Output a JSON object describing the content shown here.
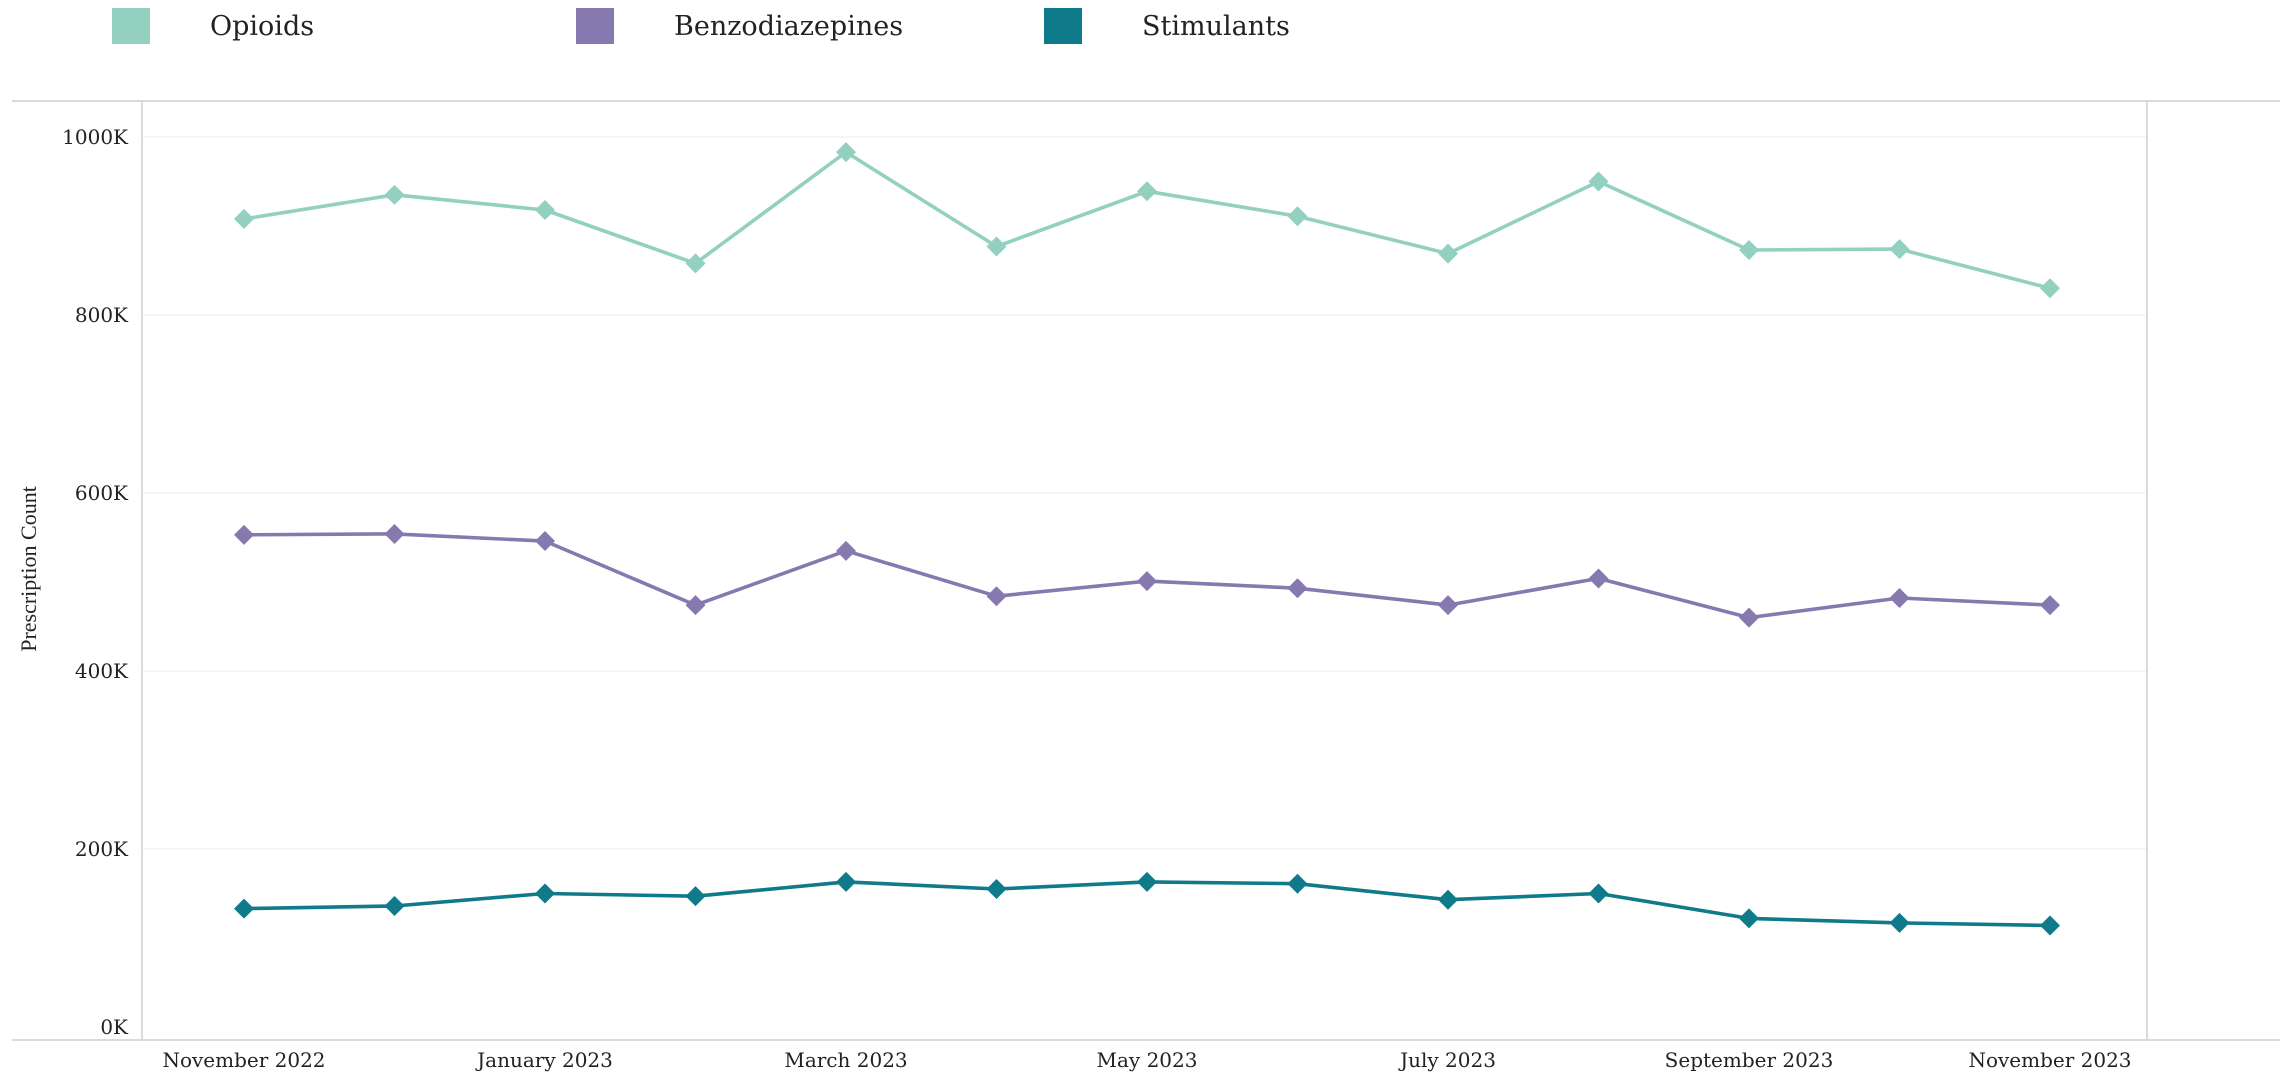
{
  "legend": {
    "items": [
      {
        "label": "Opioids",
        "color": "#93d0c0"
      },
      {
        "label": "Benzodiazepines",
        "color": "#8579b0"
      },
      {
        "label": "Stimulants",
        "color": "#0e7a8a"
      }
    ]
  },
  "chart_data": {
    "type": "line",
    "title": "",
    "xlabel": "",
    "ylabel": "Prescription Count",
    "ylim": [
      0,
      1000000
    ],
    "yticks": [
      0,
      200000,
      400000,
      600000,
      800000,
      1000000
    ],
    "ytick_labels": [
      "0K",
      "200K",
      "400K",
      "600K",
      "800K",
      "1000K"
    ],
    "x": [
      "2022-11",
      "2022-12",
      "2023-01",
      "2023-02",
      "2023-03",
      "2023-04",
      "2023-05",
      "2023-06",
      "2023-07",
      "2023-08",
      "2023-09",
      "2023-10",
      "2023-11"
    ],
    "xtick_labels": [
      {
        "month": "2022-11",
        "label": "November 2022"
      },
      {
        "month": "2023-01",
        "label": "January 2023"
      },
      {
        "month": "2023-03",
        "label": "March 2023"
      },
      {
        "month": "2023-05",
        "label": "May 2023"
      },
      {
        "month": "2023-07",
        "label": "July 2023"
      },
      {
        "month": "2023-09",
        "label": "September 2023"
      },
      {
        "month": "2023-11",
        "label": "November 2023"
      }
    ],
    "grid": true,
    "legend_position": "top-left",
    "series": [
      {
        "name": "Opioids",
        "color": "#93d0c0",
        "values": [
          908000,
          935000,
          918000,
          858000,
          983000,
          877000,
          939000,
          911000,
          869000,
          950000,
          873000,
          874000,
          830000
        ]
      },
      {
        "name": "Benzodiazepines",
        "color": "#8579b0",
        "values": [
          553000,
          554000,
          546000,
          474000,
          535000,
          484000,
          501000,
          493000,
          474000,
          504000,
          460000,
          482000,
          474000
        ]
      },
      {
        "name": "Stimulants",
        "color": "#0e7a8a",
        "values": [
          133000,
          136000,
          150000,
          147000,
          163000,
          155000,
          163000,
          161000,
          143000,
          150000,
          122000,
          117000,
          114000
        ]
      }
    ]
  }
}
